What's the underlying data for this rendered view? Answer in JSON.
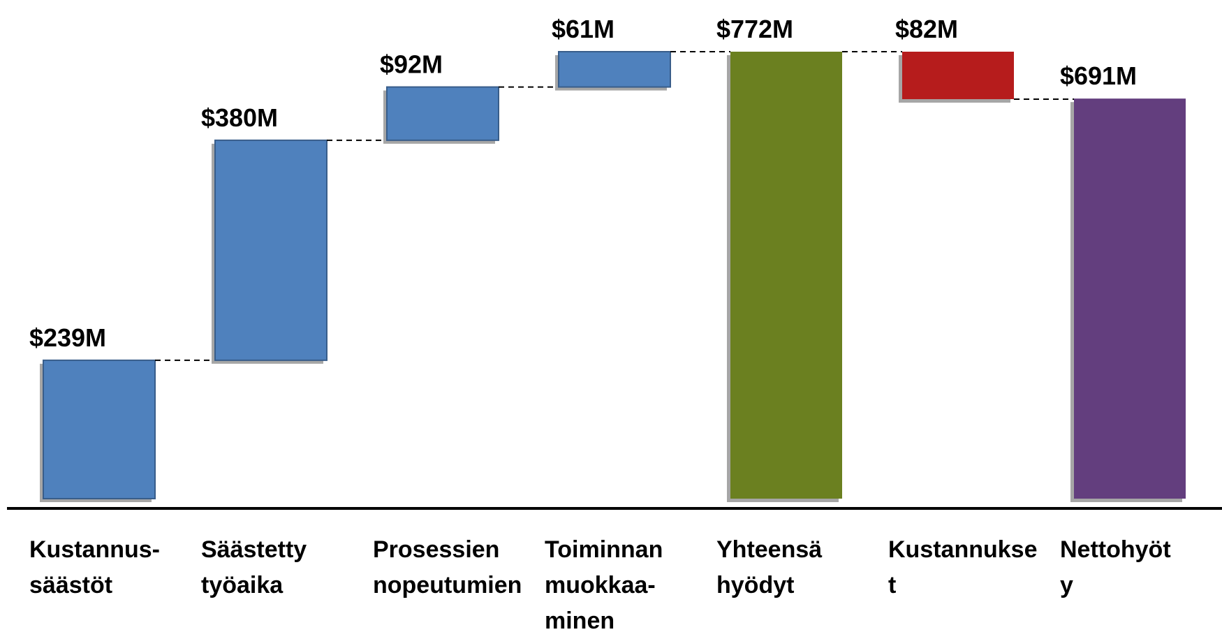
{
  "chart_data": {
    "type": "waterfall",
    "categories": [
      "Kustannus-\nsäästöt",
      "Säästetty\ntyöaika",
      "Prosessien\nnopeutumien",
      "Toiminnan\nmuokkaa-\nminen",
      "Yhteensä\nhyödyt",
      "Kustannukse\nt",
      "Nettohyöt\ny"
    ],
    "values": [
      239,
      380,
      92,
      61,
      772,
      -82,
      691
    ],
    "value_labels": [
      "$239M",
      "$380M",
      "$92M",
      "$61M",
      "$772M",
      "$82M",
      "$691M"
    ],
    "measure": [
      "relative",
      "relative",
      "relative",
      "relative",
      "total",
      "relative",
      "total"
    ],
    "colors": [
      "#4f81bd",
      "#4f81bd",
      "#4f81bd",
      "#4f81bd",
      "#6b8020",
      "#b61c1c",
      "#633e7e"
    ]
  }
}
